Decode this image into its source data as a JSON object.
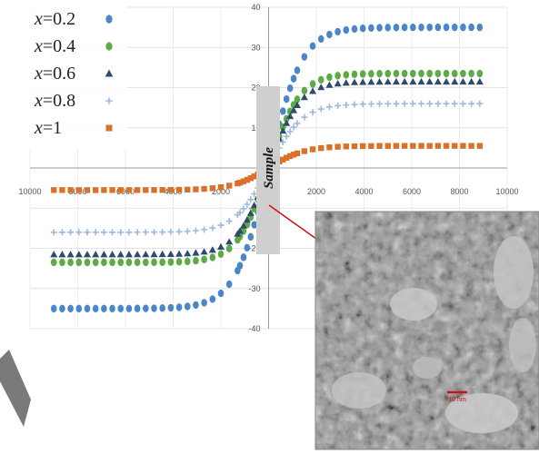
{
  "chart_data": {
    "type": "scatter",
    "xlim": [
      -10000,
      10000
    ],
    "ylim": [
      -40,
      40
    ],
    "x_ticks": [
      -10000,
      -8000,
      -6000,
      -4000,
      -2000,
      2000,
      4000,
      6000,
      8000,
      10000
    ],
    "x_tick_labels": [
      "10000",
      "8000",
      "6000",
      "4000",
      "2000",
      "2000",
      "4000",
      "6000",
      "8000",
      "10000"
    ],
    "y_ticks": [
      -40,
      -30,
      -20,
      -10,
      10,
      20,
      30,
      40
    ],
    "y_tick_labels": [
      "-40",
      "-30",
      "-20",
      "-10",
      "10",
      "20",
      "30",
      "40"
    ],
    "grid": true,
    "legend_position": "top-left",
    "series": [
      {
        "name": "x=0.2",
        "legend_var": "x",
        "legend_val": "=0.2",
        "marker": "circle",
        "color": "#4a86c8",
        "ms": 35.0,
        "k": 1400
      },
      {
        "name": "x=0.4",
        "legend_var": "x",
        "legend_val": "=0.4",
        "marker": "circle",
        "color": "#5cab45",
        "ms": 23.5,
        "k": 1300
      },
      {
        "name": "x=0.6",
        "legend_var": "x",
        "legend_val": "=0.6",
        "marker": "triangle",
        "color": "#2f4a6e",
        "ms": 21.5,
        "k": 1300
      },
      {
        "name": "x=0.8",
        "legend_var": "x",
        "legend_val": "=0.8",
        "marker": "plus",
        "color": "#9fb8de",
        "ms": 16.0,
        "k": 1400
      },
      {
        "name": "x=1",
        "legend_var": "x",
        "legend_val": "=1",
        "marker": "square",
        "color": "#d9712a",
        "ms": 5.5,
        "k": 1500
      }
    ],
    "sample_label": "Sample",
    "scale_bar_label": "10 nm"
  }
}
